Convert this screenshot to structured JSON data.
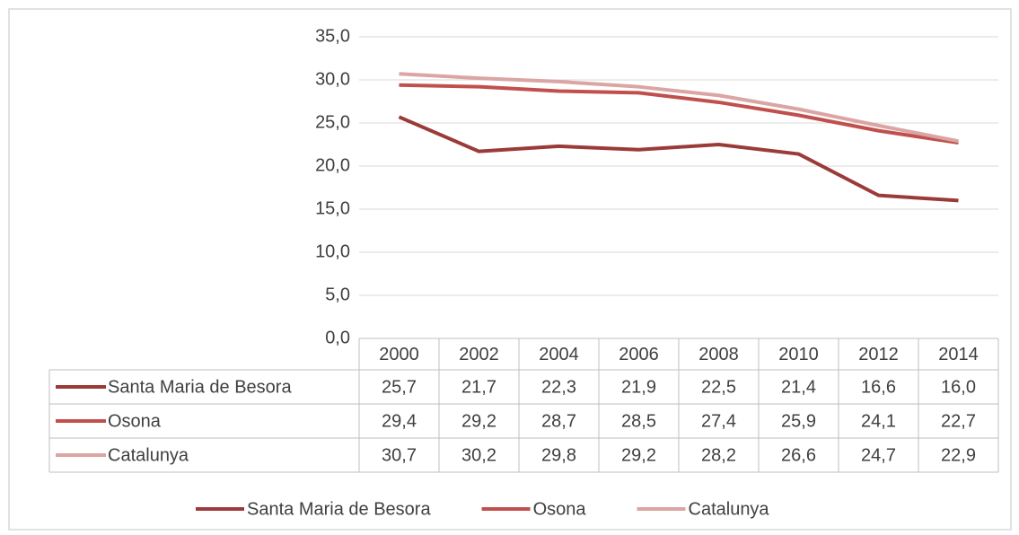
{
  "chart_data": {
    "type": "line",
    "categories": [
      "2000",
      "2002",
      "2004",
      "2006",
      "2008",
      "2010",
      "2012",
      "2014"
    ],
    "series": [
      {
        "name": "Santa Maria de Besora",
        "color": "#9b3b39",
        "values": [
          25.7,
          21.7,
          22.3,
          21.9,
          22.5,
          21.4,
          16.6,
          16.0
        ],
        "value_labels": [
          "25,7",
          "21,7",
          "22,3",
          "21,9",
          "22,5",
          "21,4",
          "16,6",
          "16,0"
        ]
      },
      {
        "name": "Osona",
        "color": "#c0504d",
        "values": [
          29.4,
          29.2,
          28.7,
          28.5,
          27.4,
          25.9,
          24.1,
          22.7
        ],
        "value_labels": [
          "29,4",
          "29,2",
          "28,7",
          "28,5",
          "27,4",
          "25,9",
          "24,1",
          "22,7"
        ]
      },
      {
        "name": "Catalunya",
        "color": "#dba5a4",
        "values": [
          30.7,
          30.2,
          29.8,
          29.2,
          28.2,
          26.6,
          24.7,
          22.9
        ],
        "value_labels": [
          "30,7",
          "30,2",
          "29,8",
          "29,2",
          "28,2",
          "26,6",
          "24,7",
          "22,9"
        ]
      }
    ],
    "ylim": [
      0,
      35
    ],
    "yticks": [
      {
        "value": 0,
        "label": "0,0"
      },
      {
        "value": 5,
        "label": "5,0"
      },
      {
        "value": 10,
        "label": "10,0"
      },
      {
        "value": 15,
        "label": "15,0"
      },
      {
        "value": 20,
        "label": "20,0"
      },
      {
        "value": 25,
        "label": "25,0"
      },
      {
        "value": 30,
        "label": "30,0"
      },
      {
        "value": 35,
        "label": "35,0"
      }
    ],
    "grid": true,
    "legend": "bottom"
  }
}
